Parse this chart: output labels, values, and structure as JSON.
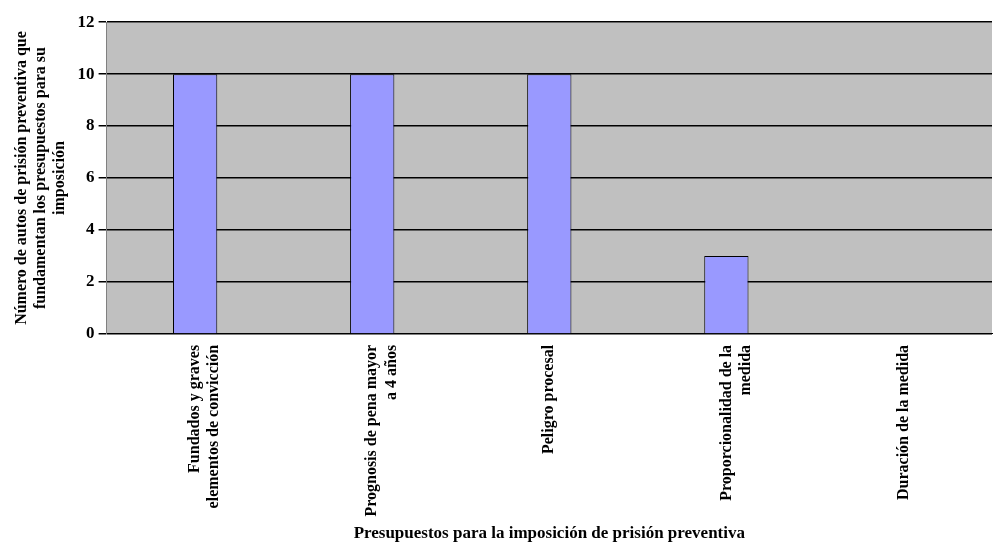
{
  "chart_data": {
    "type": "bar",
    "xlabel": "Presupuestos para la imposición de prisión preventiva",
    "ylabel": "Número de autos de prisión preventiva que fundamentan los presupuestos para su imposición",
    "categories": [
      "Fundados y graves elementos de convicción",
      "Prognosis de pena mayor a 4 años",
      "Peligro procesal",
      "Proporcionalidad de la medida",
      "Duración de la medida"
    ],
    "values": [
      10,
      10,
      10,
      3,
      0
    ],
    "color": "#9999ff",
    "ylim": [
      0,
      12
    ],
    "yticks": [
      0,
      2,
      4,
      6,
      8,
      10,
      12
    ],
    "grid": "y",
    "legend": false
  }
}
